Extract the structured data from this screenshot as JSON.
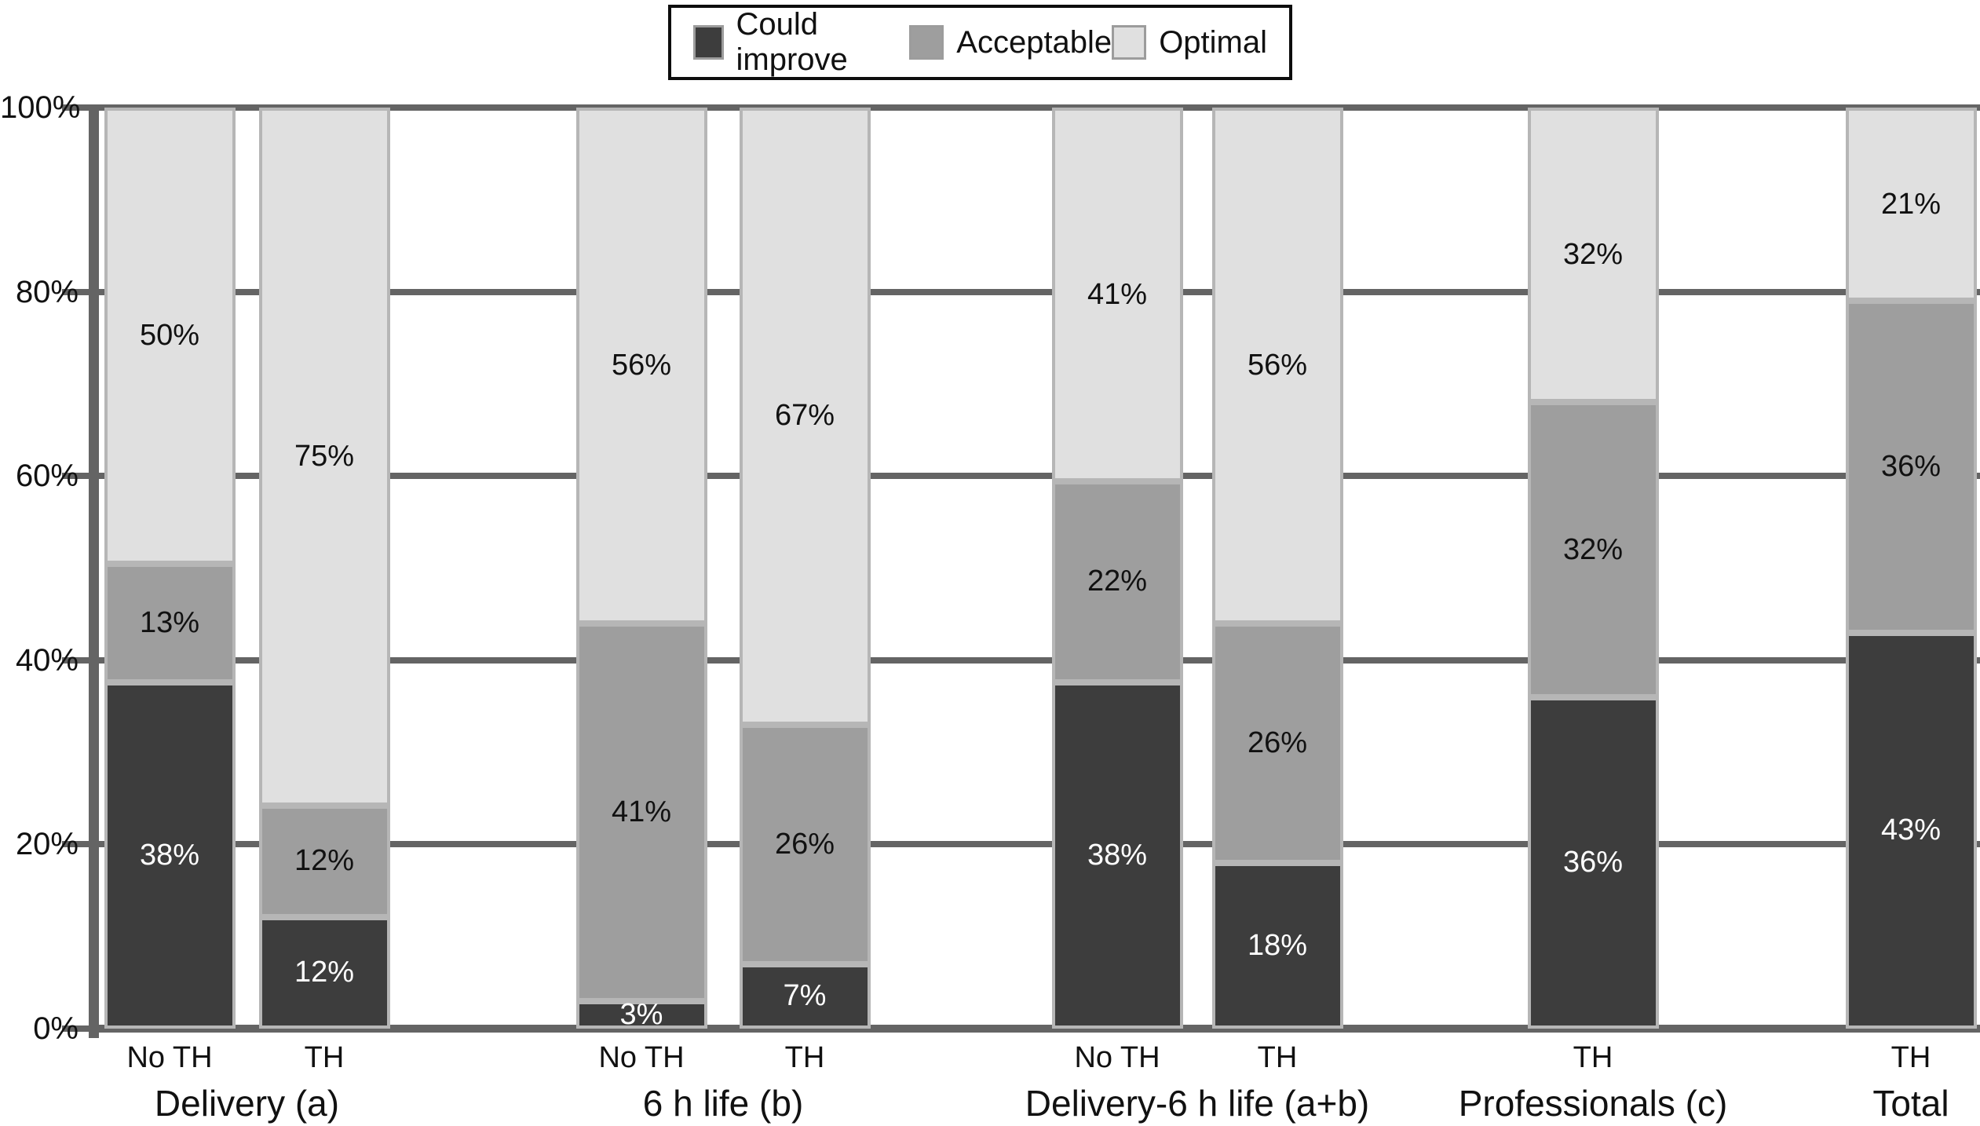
{
  "chart_data": {
    "type": "bar",
    "stacked": true,
    "orientation": "vertical",
    "title": "",
    "xlabel": "",
    "ylabel": "",
    "ylim": [
      0,
      100
    ],
    "grid": true,
    "y_axis": {
      "levels": [
        0,
        20,
        40,
        60,
        80,
        100
      ],
      "tick_labels": [
        "0%",
        "20%",
        "40%",
        "60%",
        "80%",
        "100%"
      ]
    },
    "legend": {
      "position": "top-center",
      "entries": [
        {
          "name": "Could improve",
          "color": "#3d3d3d",
          "text_color": "#ffffff"
        },
        {
          "name": "Acceptable",
          "color": "#9e9e9e",
          "text_color": "#111111"
        },
        {
          "name": "Optimal",
          "color": "#e0e0e0",
          "text_color": "#111111"
        }
      ]
    },
    "groups": [
      {
        "label": "Delivery (a)",
        "bars": [
          {
            "tick": "No TH",
            "segments": [
              {
                "series": "Could improve",
                "value": 38,
                "label": "38%"
              },
              {
                "series": "Acceptable",
                "value": 13,
                "label": "13%"
              },
              {
                "series": "Optimal",
                "value": 50,
                "label": "50%"
              }
            ]
          },
          {
            "tick": "TH",
            "segments": [
              {
                "series": "Could improve",
                "value": 12,
                "label": "12%"
              },
              {
                "series": "Acceptable",
                "value": 12,
                "label": "12%"
              },
              {
                "series": "Optimal",
                "value": 75,
                "label": "75%"
              }
            ]
          }
        ]
      },
      {
        "label": "6 h life (b)",
        "bars": [
          {
            "tick": "No TH",
            "segments": [
              {
                "series": "Could improve",
                "value": 3,
                "label": "3%"
              },
              {
                "series": "Acceptable",
                "value": 41,
                "label": "41%"
              },
              {
                "series": "Optimal",
                "value": 56,
                "label": "56%"
              }
            ]
          },
          {
            "tick": "TH",
            "segments": [
              {
                "series": "Could improve",
                "value": 7,
                "label": "7%"
              },
              {
                "series": "Acceptable",
                "value": 26,
                "label": "26%"
              },
              {
                "series": "Optimal",
                "value": 67,
                "label": "67%"
              }
            ]
          }
        ]
      },
      {
        "label": "Delivery-6 h life (a+b)",
        "bars": [
          {
            "tick": "No TH",
            "segments": [
              {
                "series": "Could improve",
                "value": 38,
                "label": "38%"
              },
              {
                "series": "Acceptable",
                "value": 22,
                "label": "22%"
              },
              {
                "series": "Optimal",
                "value": 41,
                "label": "41%"
              }
            ]
          },
          {
            "tick": "TH",
            "segments": [
              {
                "series": "Could improve",
                "value": 18,
                "label": "18%"
              },
              {
                "series": "Acceptable",
                "value": 26,
                "label": "26%"
              },
              {
                "series": "Optimal",
                "value": 56,
                "label": "56%"
              }
            ]
          }
        ]
      },
      {
        "label": "Professionals (c)",
        "bars": [
          {
            "tick": "TH",
            "segments": [
              {
                "series": "Could improve",
                "value": 36,
                "label": "36%"
              },
              {
                "series": "Acceptable",
                "value": 32,
                "label": "32%"
              },
              {
                "series": "Optimal",
                "value": 32,
                "label": "32%"
              }
            ]
          }
        ]
      },
      {
        "label": "Total",
        "bars": [
          {
            "tick": "TH",
            "segments": [
              {
                "series": "Could improve",
                "value": 43,
                "label": "43%"
              },
              {
                "series": "Acceptable",
                "value": 36,
                "label": "36%"
              },
              {
                "series": "Optimal",
                "value": 21,
                "label": "21%"
              }
            ]
          }
        ]
      }
    ]
  }
}
